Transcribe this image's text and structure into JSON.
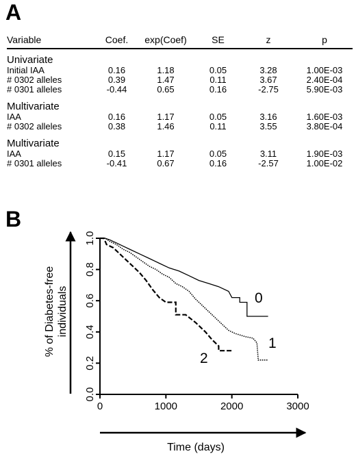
{
  "panel_a": {
    "letter": "A",
    "columns": [
      "Variable",
      "Coef.",
      "exp(Coef)",
      "SE",
      "z",
      "p"
    ],
    "groups": [
      {
        "title": "Univariate",
        "rows": [
          [
            "Initial IAA",
            "0.16",
            "1.18",
            "0.05",
            "3.28",
            "1.00E-03"
          ],
          [
            "# 0302 alleles",
            "0.39",
            "1.47",
            "0.11",
            "3.67",
            "2.40E-04"
          ],
          [
            "# 0301 alleles",
            "-0.44",
            "0.65",
            "0.16",
            "-2.75",
            "5.90E-03"
          ]
        ]
      },
      {
        "title": "Multivariate",
        "rows": [
          [
            "IAA",
            "0.16",
            "1.17",
            "0.05",
            "3.16",
            "1.60E-03"
          ],
          [
            "# 0302 alleles",
            "0.38",
            "1.46",
            "0.11",
            "3.55",
            "3.80E-04"
          ]
        ]
      },
      {
        "title": "Multivariate",
        "rows": [
          [
            "IAA",
            "0.15",
            "1.17",
            "0.05",
            "3.11",
            "1.90E-03"
          ],
          [
            "# 0301 alleles",
            "-0.41",
            "0.67",
            "0.16",
            "-2.57",
            "1.00E-02"
          ]
        ]
      }
    ]
  },
  "panel_b": {
    "letter": "B"
  },
  "chart_data": {
    "type": "line",
    "step": true,
    "xlabel": "Time (days)",
    "ylabel_lines": [
      "% of Diabetes-free",
      "individuals"
    ],
    "xlim": [
      0,
      3000
    ],
    "ylim": [
      0,
      1
    ],
    "xticks": [
      "0",
      "1000",
      "2000",
      "3000"
    ],
    "yticks": [
      "0.0",
      "0.2",
      "0.4",
      "0.6",
      "0.8",
      "1.0"
    ],
    "grid": false,
    "series": [
      {
        "name": "0",
        "style": "solid",
        "points": [
          [
            0,
            1.0
          ],
          [
            80,
            1.0
          ],
          [
            150,
            0.99
          ],
          [
            250,
            0.97
          ],
          [
            350,
            0.95
          ],
          [
            450,
            0.93
          ],
          [
            600,
            0.9
          ],
          [
            750,
            0.87
          ],
          [
            900,
            0.84
          ],
          [
            1050,
            0.81
          ],
          [
            1200,
            0.79
          ],
          [
            1350,
            0.76
          ],
          [
            1500,
            0.73
          ],
          [
            1650,
            0.71
          ],
          [
            1800,
            0.69
          ],
          [
            1950,
            0.66
          ],
          [
            2000,
            0.62
          ],
          [
            2120,
            0.62
          ],
          [
            2120,
            0.59
          ],
          [
            2230,
            0.59
          ],
          [
            2230,
            0.5
          ],
          [
            2550,
            0.5
          ]
        ]
      },
      {
        "name": "1",
        "style": "dotted",
        "points": [
          [
            0,
            1.0
          ],
          [
            80,
            1.0
          ],
          [
            150,
            0.98
          ],
          [
            250,
            0.96
          ],
          [
            350,
            0.93
          ],
          [
            450,
            0.91
          ],
          [
            550,
            0.88
          ],
          [
            650,
            0.85
          ],
          [
            750,
            0.82
          ],
          [
            850,
            0.8
          ],
          [
            950,
            0.77
          ],
          [
            1050,
            0.75
          ],
          [
            1150,
            0.71
          ],
          [
            1250,
            0.69
          ],
          [
            1350,
            0.66
          ],
          [
            1450,
            0.61
          ],
          [
            1550,
            0.57
          ],
          [
            1650,
            0.53
          ],
          [
            1750,
            0.49
          ],
          [
            1850,
            0.45
          ],
          [
            1950,
            0.41
          ],
          [
            2050,
            0.39
          ],
          [
            2200,
            0.37
          ],
          [
            2320,
            0.36
          ],
          [
            2380,
            0.33
          ],
          [
            2400,
            0.22
          ],
          [
            2550,
            0.22
          ]
        ]
      },
      {
        "name": "2",
        "style": "dashed",
        "points": [
          [
            0,
            1.0
          ],
          [
            60,
            1.0
          ],
          [
            100,
            0.96
          ],
          [
            200,
            0.94
          ],
          [
            300,
            0.9
          ],
          [
            400,
            0.86
          ],
          [
            500,
            0.82
          ],
          [
            600,
            0.78
          ],
          [
            700,
            0.73
          ],
          [
            800,
            0.67
          ],
          [
            900,
            0.62
          ],
          [
            1000,
            0.59
          ],
          [
            1150,
            0.59
          ],
          [
            1150,
            0.51
          ],
          [
            1300,
            0.51
          ],
          [
            1450,
            0.46
          ],
          [
            1600,
            0.4
          ],
          [
            1700,
            0.35
          ],
          [
            1800,
            0.31
          ],
          [
            1800,
            0.28
          ],
          [
            2000,
            0.28
          ]
        ]
      }
    ]
  }
}
